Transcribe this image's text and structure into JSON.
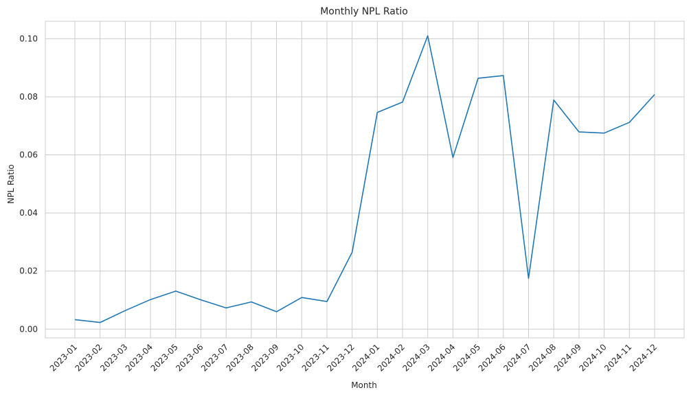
{
  "chart_data": {
    "type": "line",
    "title": "Monthly NPL Ratio",
    "xlabel": "Month",
    "ylabel": "NPL Ratio",
    "categories": [
      "2023-01",
      "2023-02",
      "2023-03",
      "2023-04",
      "2023-05",
      "2023-06",
      "2023-07",
      "2023-08",
      "2023-09",
      "2023-10",
      "2023-11",
      "2023-12",
      "2024-01",
      "2024-02",
      "2024-03",
      "2024-04",
      "2024-05",
      "2024-06",
      "2024-07",
      "2024-08",
      "2024-09",
      "2024-10",
      "2024-11",
      "2024-12"
    ],
    "series": [
      {
        "values": [
          0.0033,
          0.0023,
          0.0064,
          0.0102,
          0.0131,
          0.0101,
          0.0073,
          0.0094,
          0.006,
          0.0109,
          0.0095,
          0.0265,
          0.0746,
          0.0782,
          0.101,
          0.0591,
          0.0864,
          0.0873,
          0.0175,
          0.0789,
          0.0679,
          0.0675,
          0.0712,
          0.0808
        ],
        "color": "#1f77b4"
      }
    ],
    "ylim": [
      -0.003,
      0.106
    ],
    "yticks": [
      0.0,
      0.02,
      0.04,
      0.06,
      0.08,
      0.1
    ],
    "ytick_labels": [
      "0.00",
      "0.02",
      "0.04",
      "0.06",
      "0.08",
      "0.10"
    ],
    "grid": true,
    "legend": false
  }
}
